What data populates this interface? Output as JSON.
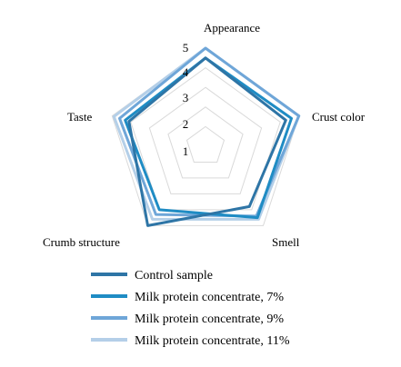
{
  "chart_data": {
    "type": "radar",
    "categories": [
      "Appearance",
      "Crust color",
      "Smell",
      "Crumb structure",
      "Taste"
    ],
    "rlim": [
      0,
      5
    ],
    "ticks": [
      "1",
      "2",
      "3",
      "4",
      "5"
    ],
    "grid": true,
    "legend_position": "bottom",
    "series": [
      {
        "name": "Control sample",
        "color": "#2e75a6",
        "values": [
          4.5,
          4.3,
          3.8,
          5.0,
          4.1
        ]
      },
      {
        "name": "Milk protein concentrate, 7%",
        "color": "#1f8cc4",
        "values": [
          4.5,
          4.6,
          4.5,
          4.0,
          4.3
        ]
      },
      {
        "name": "Milk protein concentrate, 9%",
        "color": "#6fa6d8",
        "values": [
          5.0,
          5.0,
          4.4,
          4.3,
          4.6
        ]
      },
      {
        "name": "Milk protein concentrate, 11%",
        "color": "#b4cfe8",
        "values": [
          5.0,
          5.0,
          4.6,
          4.6,
          4.9
        ]
      }
    ]
  }
}
